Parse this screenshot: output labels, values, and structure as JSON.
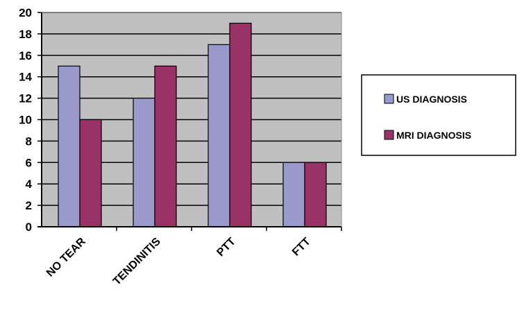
{
  "chart_data": {
    "type": "bar",
    "title": "",
    "xlabel": "",
    "ylabel": "",
    "categories": [
      "NO TEAR",
      "TENDINITIS",
      "PTT",
      "FTT"
    ],
    "series": [
      {
        "name": "US DIAGNOSIS",
        "color": "#9999cc",
        "values": [
          15,
          12,
          17,
          6
        ]
      },
      {
        "name": "MRI DIAGNOSIS",
        "color": "#993366",
        "values": [
          10,
          15,
          19,
          6
        ]
      }
    ],
    "ylim": [
      0,
      20
    ],
    "yticks": [
      "0",
      "2",
      "4",
      "6",
      "8",
      "10",
      "12",
      "14",
      "16",
      "18",
      "20"
    ],
    "grid": true,
    "plot_background": "#c0c0c0",
    "legend_position": "right"
  }
}
